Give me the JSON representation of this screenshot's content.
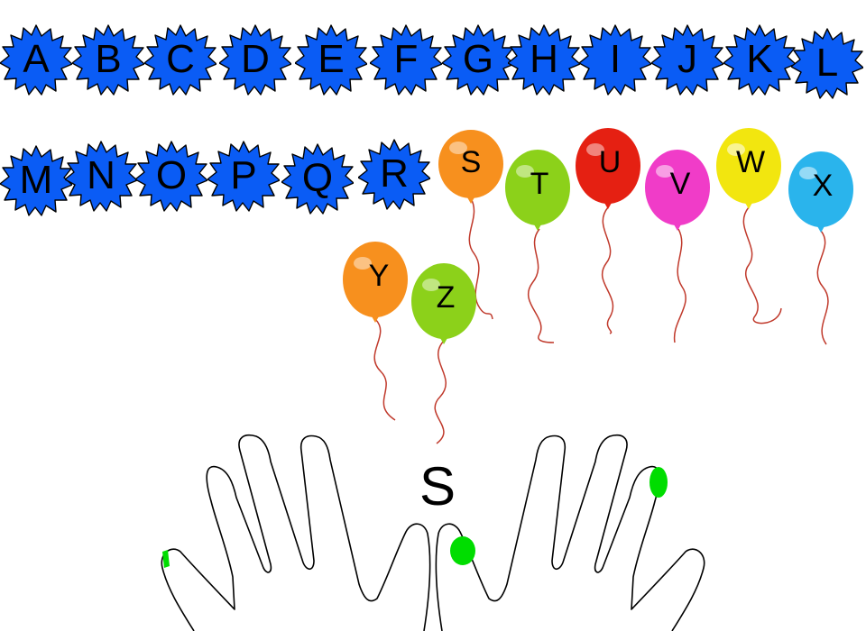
{
  "stars": [
    {
      "letter": "A"
    },
    {
      "letter": "B"
    },
    {
      "letter": "C"
    },
    {
      "letter": "D"
    },
    {
      "letter": "E"
    },
    {
      "letter": "F"
    },
    {
      "letter": "G"
    },
    {
      "letter": "H"
    },
    {
      "letter": "I"
    },
    {
      "letter": "J"
    },
    {
      "letter": "K"
    },
    {
      "letter": "L"
    },
    {
      "letter": "M"
    },
    {
      "letter": "N"
    },
    {
      "letter": "O"
    },
    {
      "letter": "P"
    },
    {
      "letter": "Q"
    },
    {
      "letter": "R"
    }
  ],
  "balloons": [
    {
      "letter": "S",
      "color": "#f7901e"
    },
    {
      "letter": "T",
      "color": "#8cd11a"
    },
    {
      "letter": "U",
      "color": "#e52012"
    },
    {
      "letter": "V",
      "color": "#f03cc8"
    },
    {
      "letter": "W",
      "color": "#f2e60f"
    },
    {
      "letter": "X",
      "color": "#2ab4ec"
    },
    {
      "letter": "Y",
      "color": "#f7901e"
    },
    {
      "letter": "Z",
      "color": "#8cd11a"
    }
  ],
  "current_letter": "S",
  "colors": {
    "star_fill": "#0a5cf5",
    "finger_highlight": "#00dd00",
    "string": "#c0392b"
  }
}
